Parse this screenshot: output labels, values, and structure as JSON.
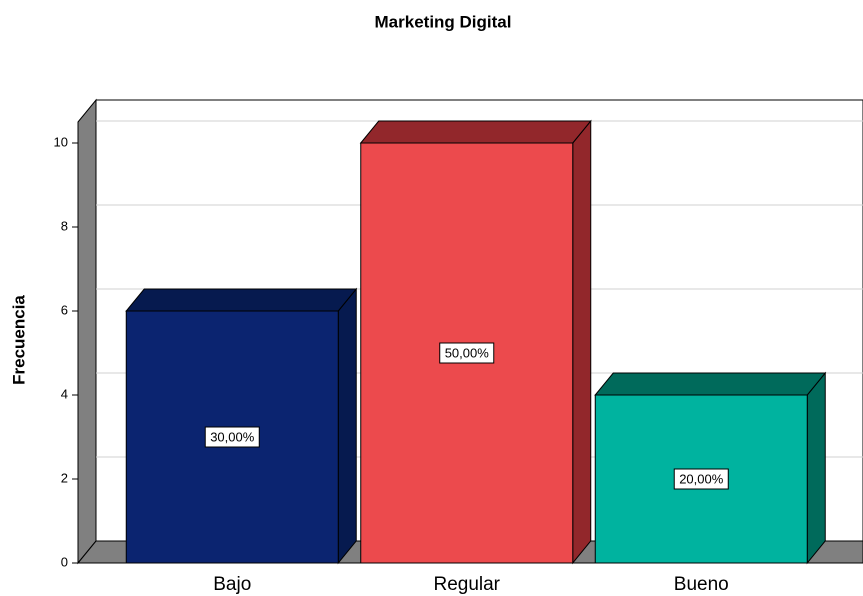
{
  "chart_data": {
    "type": "bar3d",
    "title": "Marketing Digital",
    "y_label": "Frecuencia",
    "categories": [
      "Bajo",
      "Regular",
      "Bueno"
    ],
    "values": [
      6,
      10,
      4
    ],
    "colors": [
      "#0b2470",
      "#ec4a4d",
      "#00b39f"
    ],
    "side_colors": [
      "#061a4f",
      "#92272b",
      "#006a5b"
    ],
    "percentages": [
      {
        "value": 30,
        "label": "30,00%"
      },
      {
        "value": 50,
        "label": "50,00%"
      },
      {
        "value": 20,
        "label": "20,00%"
      }
    ],
    "ylim": [
      0,
      10.5
    ],
    "yticks": [
      0,
      2,
      4,
      6,
      8,
      10
    ],
    "grid": true
  }
}
